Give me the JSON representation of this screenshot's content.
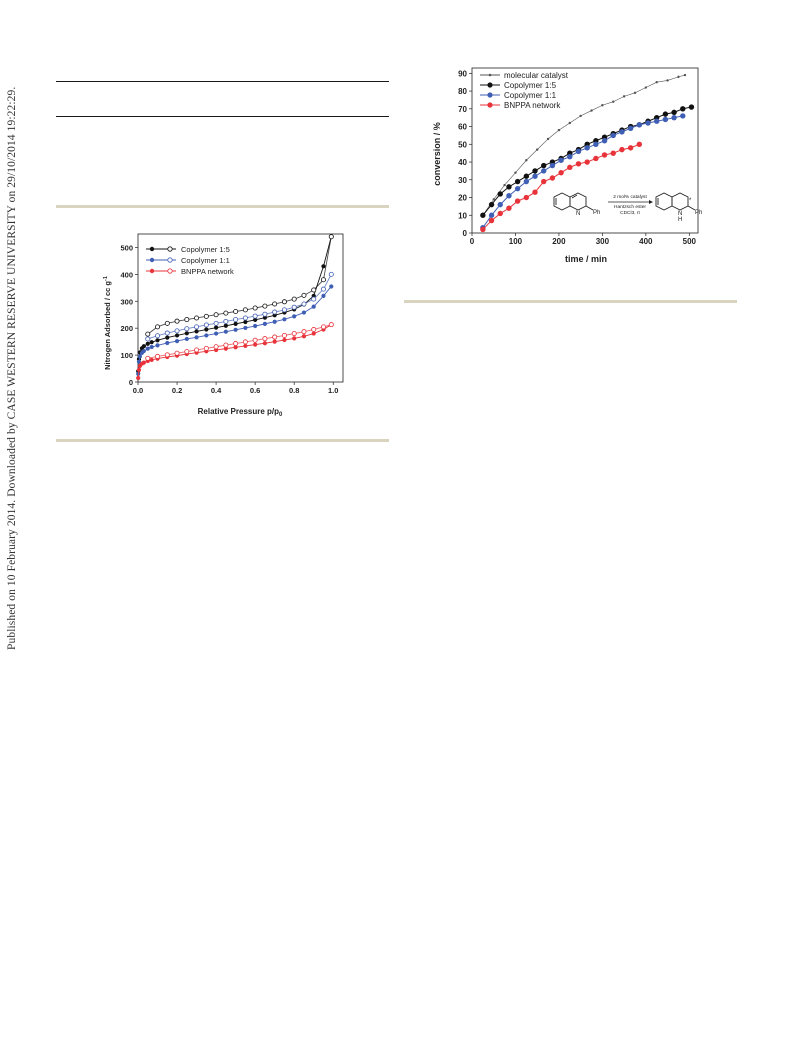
{
  "sidebar": {
    "published_text": "Published on 10 February 2014. Downloaded by CASE WESTERN RESERVE UNIVERSITY on 29/10/2014 19:22:29."
  },
  "colors": {
    "black_series": "#111111",
    "blue_series": "#3f5fb5",
    "red_series": "#e8333a",
    "grey_series": "#555555",
    "rule_tan": "#d8d4bf"
  },
  "chart_data": [
    {
      "type": "line",
      "xlabel": "Relative Pressure p/p0",
      "ylabel": "Nitrogen Adsorbed / cc g-1",
      "xlim": [
        0.0,
        1.05
      ],
      "ylim": [
        0,
        550
      ],
      "xticks": [
        "0.0",
        "0.2",
        "0.4",
        "0.6",
        "0.8",
        "1.0"
      ],
      "yticks": [
        "0",
        "100",
        "200",
        "300",
        "400",
        "500"
      ],
      "legend_position": "top-left",
      "series": [
        {
          "name": "Copolymer 1:5",
          "color": "#111111",
          "adsorption": [
            [
              0.001,
              40
            ],
            [
              0.005,
              85
            ],
            [
              0.01,
              110
            ],
            [
              0.02,
              125
            ],
            [
              0.03,
              133
            ],
            [
              0.05,
              142
            ],
            [
              0.07,
              148
            ],
            [
              0.1,
              155
            ],
            [
              0.15,
              165
            ],
            [
              0.2,
              173
            ],
            [
              0.25,
              181
            ],
            [
              0.3,
              188
            ],
            [
              0.35,
              195
            ],
            [
              0.4,
              202
            ],
            [
              0.45,
              209
            ],
            [
              0.5,
              216
            ],
            [
              0.55,
              223
            ],
            [
              0.6,
              231
            ],
            [
              0.65,
              239
            ],
            [
              0.7,
              248
            ],
            [
              0.75,
              258
            ],
            [
              0.8,
              270
            ],
            [
              0.85,
              288
            ],
            [
              0.9,
              320
            ],
            [
              0.95,
              430
            ],
            [
              0.99,
              540
            ]
          ],
          "desorption": [
            [
              0.99,
              540
            ],
            [
              0.95,
              380
            ],
            [
              0.9,
              342
            ],
            [
              0.85,
              322
            ],
            [
              0.8,
              308
            ],
            [
              0.75,
              298
            ],
            [
              0.7,
              290
            ],
            [
              0.65,
              282
            ],
            [
              0.6,
              275
            ],
            [
              0.55,
              268
            ],
            [
              0.5,
              262
            ],
            [
              0.45,
              256
            ],
            [
              0.4,
              250
            ],
            [
              0.35,
              244
            ],
            [
              0.3,
              238
            ],
            [
              0.25,
              232
            ],
            [
              0.2,
              226
            ],
            [
              0.15,
              218
            ],
            [
              0.1,
              205
            ],
            [
              0.05,
              178
            ]
          ]
        },
        {
          "name": "Copolymer 1:1",
          "color": "#3f5fb5",
          "adsorption": [
            [
              0.001,
              30
            ],
            [
              0.005,
              75
            ],
            [
              0.01,
              95
            ],
            [
              0.02,
              108
            ],
            [
              0.03,
              115
            ],
            [
              0.05,
              124
            ],
            [
              0.07,
              130
            ],
            [
              0.1,
              136
            ],
            [
              0.15,
              145
            ],
            [
              0.2,
              152
            ],
            [
              0.25,
              160
            ],
            [
              0.3,
              166
            ],
            [
              0.35,
              173
            ],
            [
              0.4,
              180
            ],
            [
              0.45,
              187
            ],
            [
              0.5,
              194
            ],
            [
              0.55,
              201
            ],
            [
              0.6,
              208
            ],
            [
              0.65,
              216
            ],
            [
              0.7,
              224
            ],
            [
              0.75,
              233
            ],
            [
              0.8,
              244
            ],
            [
              0.85,
              258
            ],
            [
              0.9,
              280
            ],
            [
              0.95,
              320
            ],
            [
              0.99,
              355
            ]
          ],
          "desorption": [
            [
              0.99,
              400
            ],
            [
              0.95,
              345
            ],
            [
              0.9,
              308
            ],
            [
              0.85,
              290
            ],
            [
              0.8,
              278
            ],
            [
              0.75,
              268
            ],
            [
              0.7,
              260
            ],
            [
              0.65,
              252
            ],
            [
              0.6,
              245
            ],
            [
              0.55,
              238
            ],
            [
              0.5,
              232
            ],
            [
              0.45,
              225
            ],
            [
              0.4,
              218
            ],
            [
              0.35,
              212
            ],
            [
              0.3,
              205
            ],
            [
              0.25,
              198
            ],
            [
              0.2,
              190
            ],
            [
              0.15,
              182
            ],
            [
              0.1,
              172
            ],
            [
              0.05,
              160
            ]
          ]
        },
        {
          "name": "BNPPA network",
          "color": "#e8333a",
          "adsorption": [
            [
              0.001,
              15
            ],
            [
              0.005,
              45
            ],
            [
              0.01,
              60
            ],
            [
              0.02,
              68
            ],
            [
              0.03,
              72
            ],
            [
              0.05,
              78
            ],
            [
              0.07,
              82
            ],
            [
              0.1,
              87
            ],
            [
              0.15,
              93
            ],
            [
              0.2,
              98
            ],
            [
              0.25,
              104
            ],
            [
              0.3,
              109
            ],
            [
              0.35,
              114
            ],
            [
              0.4,
              119
            ],
            [
              0.45,
              124
            ],
            [
              0.5,
              129
            ],
            [
              0.55,
              134
            ],
            [
              0.6,
              139
            ],
            [
              0.65,
              144
            ],
            [
              0.7,
              150
            ],
            [
              0.75,
              156
            ],
            [
              0.8,
              162
            ],
            [
              0.85,
              170
            ],
            [
              0.9,
              180
            ],
            [
              0.95,
              195
            ],
            [
              0.99,
              213
            ]
          ],
          "desorption": [
            [
              0.99,
              213
            ],
            [
              0.95,
              205
            ],
            [
              0.9,
              195
            ],
            [
              0.85,
              187
            ],
            [
              0.8,
              180
            ],
            [
              0.75,
              173
            ],
            [
              0.7,
              167
            ],
            [
              0.65,
              161
            ],
            [
              0.6,
              155
            ],
            [
              0.55,
              149
            ],
            [
              0.5,
              143
            ],
            [
              0.45,
              137
            ],
            [
              0.4,
              131
            ],
            [
              0.35,
              125
            ],
            [
              0.3,
              119
            ],
            [
              0.25,
              113
            ],
            [
              0.2,
              107
            ],
            [
              0.15,
              101
            ],
            [
              0.1,
              95
            ],
            [
              0.05,
              88
            ]
          ]
        }
      ]
    },
    {
      "type": "line",
      "xlabel": "time / min",
      "ylabel": "conversion / %",
      "xlim": [
        0,
        520
      ],
      "ylim": [
        0,
        93
      ],
      "xticks": [
        "0",
        "100",
        "200",
        "300",
        "400",
        "500"
      ],
      "yticks": [
        "0",
        "10",
        "20",
        "30",
        "40",
        "50",
        "60",
        "70",
        "80",
        "90"
      ],
      "legend_position": "top-left",
      "series": [
        {
          "name": "molecular catalyst",
          "color": "#555555",
          "marker": "small",
          "points": [
            [
              25,
              10
            ],
            [
              50,
              19
            ],
            [
              75,
              27
            ],
            [
              100,
              34
            ],
            [
              125,
              41
            ],
            [
              150,
              47
            ],
            [
              175,
              53
            ],
            [
              200,
              58
            ],
            [
              225,
              62
            ],
            [
              250,
              66
            ],
            [
              275,
              69
            ],
            [
              300,
              72
            ],
            [
              325,
              74
            ],
            [
              350,
              77
            ],
            [
              375,
              79
            ],
            [
              400,
              82
            ],
            [
              425,
              85
            ],
            [
              450,
              86
            ],
            [
              475,
              88
            ],
            [
              490,
              89
            ]
          ]
        },
        {
          "name": "Copolymer 1:5",
          "color": "#111111",
          "marker": "large",
          "points": [
            [
              25,
              10
            ],
            [
              45,
              16
            ],
            [
              65,
              22
            ],
            [
              85,
              26
            ],
            [
              105,
              29
            ],
            [
              125,
              32
            ],
            [
              145,
              35
            ],
            [
              165,
              38
            ],
            [
              185,
              40
            ],
            [
              205,
              42
            ],
            [
              225,
              45
            ],
            [
              245,
              47
            ],
            [
              265,
              50
            ],
            [
              285,
              52
            ],
            [
              305,
              54
            ],
            [
              325,
              56
            ],
            [
              345,
              58
            ],
            [
              365,
              60
            ],
            [
              385,
              61
            ],
            [
              405,
              63
            ],
            [
              425,
              65
            ],
            [
              445,
              67
            ],
            [
              465,
              68
            ],
            [
              485,
              70
            ],
            [
              505,
              71
            ]
          ]
        },
        {
          "name": "Copolymer 1:1",
          "color": "#3f5fb5",
          "marker": "large",
          "points": [
            [
              25,
              3
            ],
            [
              45,
              10
            ],
            [
              65,
              16
            ],
            [
              85,
              21
            ],
            [
              105,
              25
            ],
            [
              125,
              29
            ],
            [
              145,
              32
            ],
            [
              165,
              35
            ],
            [
              185,
              38
            ],
            [
              205,
              41
            ],
            [
              225,
              43
            ],
            [
              245,
              46
            ],
            [
              265,
              48
            ],
            [
              285,
              50
            ],
            [
              305,
              52
            ],
            [
              325,
              55
            ],
            [
              345,
              57
            ],
            [
              365,
              59
            ],
            [
              385,
              61
            ],
            [
              405,
              62
            ],
            [
              425,
              63
            ],
            [
              445,
              64
            ],
            [
              465,
              65
            ],
            [
              485,
              66
            ]
          ]
        },
        {
          "name": "BNPPA network",
          "color": "#e8333a",
          "marker": "large",
          "points": [
            [
              25,
              2
            ],
            [
              45,
              7
            ],
            [
              65,
              11
            ],
            [
              85,
              14
            ],
            [
              105,
              18
            ],
            [
              125,
              20
            ],
            [
              145,
              23
            ],
            [
              165,
              29
            ],
            [
              185,
              31
            ],
            [
              205,
              34
            ],
            [
              225,
              37
            ],
            [
              245,
              39
            ],
            [
              265,
              40
            ],
            [
              285,
              42
            ],
            [
              305,
              44
            ],
            [
              325,
              45
            ],
            [
              345,
              47
            ],
            [
              365,
              48
            ],
            [
              385,
              50
            ]
          ]
        }
      ]
    }
  ],
  "scheme": {
    "reagent_line1": "2 mol% catalyst",
    "reagent_line2": "Hantzsch ester",
    "reagent_line3": "CDCl3, rt",
    "substituent_left": "Ph",
    "substituent_right": "Ph",
    "atom_n_left": "N",
    "atom_n_right": "N",
    "atom_h_right": "H",
    "stereo_mark": "*"
  }
}
